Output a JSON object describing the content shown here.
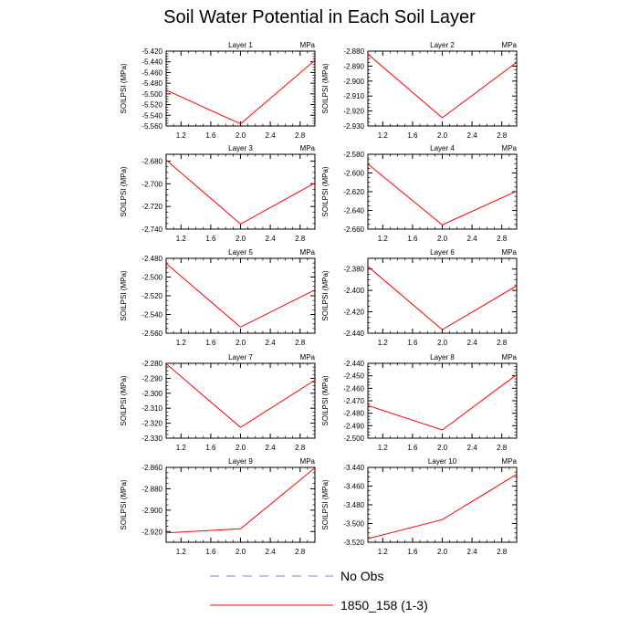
{
  "title": "Soil Water Potential in Each Soil Layer",
  "legend": {
    "placement": "bottom-center",
    "entries": [
      {
        "label": "No Obs",
        "color": "#8080e0",
        "dash": true
      },
      {
        "label": "1850_158 (1-3)",
        "color": "#ff0000",
        "dash": false
      }
    ]
  },
  "chart_data": [
    {
      "type": "line",
      "title": "Layer 1",
      "unit": "MPa",
      "ylabel": "SOILPSI  (MPa)",
      "x": [
        1,
        2,
        3
      ],
      "xlim": [
        1,
        3
      ],
      "xticks": [
        1.2,
        1.6,
        2.0,
        2.4,
        2.8
      ],
      "ylim": [
        -5.56,
        -5.42
      ],
      "yticks": [
        -5.56,
        -5.54,
        -5.52,
        -5.5,
        -5.48,
        -5.46,
        -5.44,
        -5.42
      ],
      "ytick_labels": [
        "-5.560",
        "-5.540",
        "-5.520",
        "-5.500",
        "-5.480",
        "-5.460",
        "-5.440",
        "-5.420"
      ],
      "series": [
        {
          "name": "1850_158 (1-3)",
          "values": [
            -5.493,
            -5.556,
            -5.437
          ]
        }
      ]
    },
    {
      "type": "line",
      "title": "Layer 2",
      "unit": "MPa",
      "ylabel": "SOILPSI  (MPa)",
      "x": [
        1,
        2,
        3
      ],
      "xlim": [
        1,
        3
      ],
      "xticks": [
        1.2,
        1.6,
        2.0,
        2.4,
        2.8
      ],
      "ylim": [
        -2.93,
        -2.88
      ],
      "yticks": [
        -2.93,
        -2.92,
        -2.91,
        -2.9,
        -2.89,
        -2.88
      ],
      "ytick_labels": [
        "-2.930",
        "-2.920",
        "-2.910",
        "-2.900",
        "-2.890",
        "-2.880"
      ],
      "series": [
        {
          "name": "1850_158 (1-3)",
          "values": [
            -2.882,
            -2.9245,
            -2.8875
          ]
        }
      ]
    },
    {
      "type": "line",
      "title": "Layer 3",
      "unit": "MPa",
      "ylabel": "SOILPSI  (MPa)",
      "x": [
        1,
        2,
        3
      ],
      "xlim": [
        1,
        3
      ],
      "xticks": [
        1.2,
        1.6,
        2.0,
        2.4,
        2.8
      ],
      "ylim": [
        -2.74,
        -2.674
      ],
      "yticks": [
        -2.74,
        -2.72,
        -2.7,
        -2.68
      ],
      "ytick_labels": [
        "-2.740",
        "-2.720",
        "-2.700",
        "-2.680"
      ],
      "series": [
        {
          "name": "1850_158 (1-3)",
          "values": [
            -2.679,
            -2.7355,
            -2.6993
          ]
        }
      ]
    },
    {
      "type": "line",
      "title": "Layer 4",
      "unit": "MPa",
      "ylabel": "SOILPSI  (MPa)",
      "x": [
        1,
        2,
        3
      ],
      "xlim": [
        1,
        3
      ],
      "xticks": [
        1.2,
        1.6,
        2.0,
        2.4,
        2.8
      ],
      "ylim": [
        -2.66,
        -2.58
      ],
      "yticks": [
        -2.66,
        -2.64,
        -2.62,
        -2.6,
        -2.58
      ],
      "ytick_labels": [
        "-2.660",
        "-2.640",
        "-2.620",
        "-2.600",
        "-2.580"
      ],
      "series": [
        {
          "name": "1850_158 (1-3)",
          "values": [
            -2.5904,
            -2.6555,
            -2.6193
          ]
        }
      ]
    },
    {
      "type": "line",
      "title": "Layer 5",
      "unit": "MPa",
      "ylabel": "SOILPSI  (MPa)",
      "x": [
        1,
        2,
        3
      ],
      "xlim": [
        1,
        3
      ],
      "xticks": [
        1.2,
        1.6,
        2.0,
        2.4,
        2.8
      ],
      "ylim": [
        -2.56,
        -2.48
      ],
      "yticks": [
        -2.56,
        -2.54,
        -2.52,
        -2.5,
        -2.48
      ],
      "ytick_labels": [
        "-2.560",
        "-2.540",
        "-2.520",
        "-2.500",
        "-2.480"
      ],
      "series": [
        {
          "name": "1850_158 (1-3)",
          "values": [
            -2.4855,
            -2.5535,
            -2.5137
          ]
        }
      ]
    },
    {
      "type": "line",
      "title": "Layer 6",
      "unit": "MPa",
      "ylabel": "SOILPSI  (MPa)",
      "x": [
        1,
        2,
        3
      ],
      "xlim": [
        1,
        3
      ],
      "xticks": [
        1.2,
        1.6,
        2.0,
        2.4,
        2.8
      ],
      "ylim": [
        -2.44,
        -2.37
      ],
      "yticks": [
        -2.44,
        -2.42,
        -2.4,
        -2.38
      ],
      "ytick_labels": [
        "-2.440",
        "-2.420",
        "-2.400",
        "-2.380"
      ],
      "series": [
        {
          "name": "1850_158 (1-3)",
          "values": [
            -2.3775,
            -2.4367,
            -2.3957
          ]
        }
      ]
    },
    {
      "type": "line",
      "title": "Layer 7",
      "unit": "MPa",
      "ylabel": "SOILPSI  (MPa)",
      "x": [
        1,
        2,
        3
      ],
      "xlim": [
        1,
        3
      ],
      "xticks": [
        1.2,
        1.6,
        2.0,
        2.4,
        2.8
      ],
      "ylim": [
        -2.33,
        -2.28
      ],
      "yticks": [
        -2.33,
        -2.32,
        -2.31,
        -2.3,
        -2.29,
        -2.28
      ],
      "ytick_labels": [
        "-2.330",
        "-2.320",
        "-2.310",
        "-2.300",
        "-2.290",
        "-2.280"
      ],
      "series": [
        {
          "name": "1850_158 (1-3)",
          "values": [
            -2.2803,
            -2.3228,
            -2.2912
          ]
        }
      ]
    },
    {
      "type": "line",
      "title": "Layer 8",
      "unit": "MPa",
      "ylabel": "SOILPSI  (MPa)",
      "x": [
        1,
        2,
        3
      ],
      "xlim": [
        1,
        3
      ],
      "xticks": [
        1.2,
        1.6,
        2.0,
        2.4,
        2.8
      ],
      "ylim": [
        -2.5,
        -2.44
      ],
      "yticks": [
        -2.5,
        -2.49,
        -2.48,
        -2.47,
        -2.46,
        -2.45,
        -2.44
      ],
      "ytick_labels": [
        "-2.500",
        "-2.490",
        "-2.480",
        "-2.470",
        "-2.460",
        "-2.450",
        "-2.440"
      ],
      "series": [
        {
          "name": "1850_158 (1-3)",
          "values": [
            -2.4738,
            -2.4934,
            -2.4491
          ]
        }
      ]
    },
    {
      "type": "line",
      "title": "Layer 9",
      "unit": "MPa",
      "ylabel": "SOILPSI  (MPa)",
      "x": [
        1,
        2,
        3
      ],
      "xlim": [
        1,
        3
      ],
      "xticks": [
        1.2,
        1.6,
        2.0,
        2.4,
        2.8
      ],
      "ylim": [
        -2.93,
        -2.86
      ],
      "yticks": [
        -2.92,
        -2.9,
        -2.88,
        -2.86
      ],
      "ytick_labels": [
        "-2.920",
        "-2.900",
        "-2.880",
        "-2.860"
      ],
      "series": [
        {
          "name": "1850_158 (1-3)",
          "values": [
            -2.9213,
            -2.9174,
            -2.8604
          ]
        }
      ]
    },
    {
      "type": "line",
      "title": "Layer 10",
      "unit": "MPa",
      "ylabel": "SOILPSI  (MPa)",
      "x": [
        1,
        2,
        3
      ],
      "xlim": [
        1,
        3
      ],
      "xticks": [
        1.2,
        1.6,
        2.0,
        2.4,
        2.8
      ],
      "ylim": [
        -3.52,
        -3.44
      ],
      "yticks": [
        -3.52,
        -3.5,
        -3.48,
        -3.46,
        -3.44
      ],
      "ytick_labels": [
        "-3.520",
        "-3.500",
        "-3.480",
        "-3.460",
        "-3.440"
      ],
      "series": [
        {
          "name": "1850_158 (1-3)",
          "values": [
            -3.5162,
            -3.4958,
            -3.4474
          ]
        }
      ]
    }
  ]
}
